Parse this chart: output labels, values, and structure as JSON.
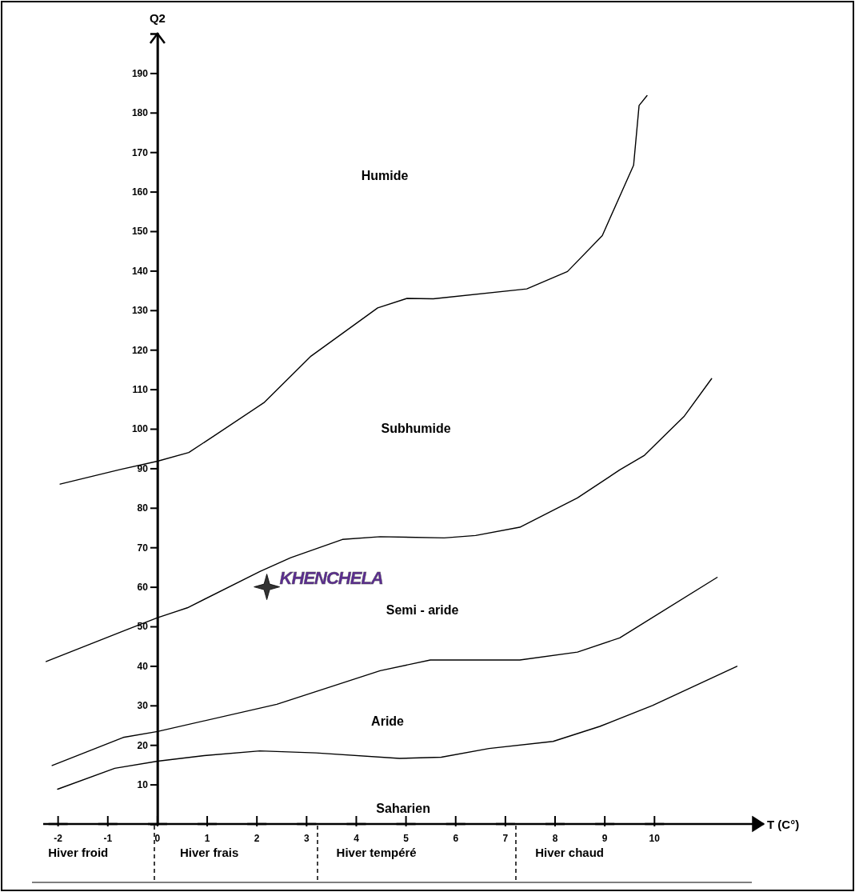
{
  "chart_data": {
    "type": "line",
    "xlabel": "T (C°)",
    "ylabel": "Q2",
    "xlim": [
      -2.3,
      12.2
    ],
    "ylim": [
      0,
      200
    ],
    "xticks": [
      -2,
      -1,
      0,
      1,
      2,
      3,
      4,
      5,
      6,
      7,
      8,
      9,
      10
    ],
    "yticks": [
      10,
      20,
      30,
      40,
      50,
      60,
      70,
      80,
      90,
      100,
      110,
      120,
      130,
      140,
      150,
      160,
      170,
      180,
      190
    ],
    "marker": "none",
    "line_style": "solid",
    "series": [
      {
        "color": "#000000",
        "x": [
          -1.96,
          -0.75,
          0,
          0.63,
          1.15,
          2.14,
          3.09,
          4.43,
          5.02,
          5.55,
          7.43,
          8.25,
          8.95,
          9.58,
          9.69,
          9.85
        ],
        "values": [
          86,
          89.7,
          91.8,
          94,
          98.3,
          106.6,
          118.4,
          130.6,
          133,
          132.9,
          135.4,
          139.8,
          148.9,
          166.7,
          181.8,
          184.3
        ]
      },
      {
        "color": "#000000",
        "x": [
          -2.24,
          -0.63,
          0,
          0.6,
          2.06,
          2.68,
          3.72,
          4.48,
          5.77,
          6.4,
          7.29,
          8.45,
          9.3,
          9.8,
          10.25,
          10.6,
          11.15
        ],
        "values": [
          41.1,
          49.1,
          52.2,
          54.7,
          63.9,
          67.4,
          72,
          72.7,
          72.4,
          73,
          75.1,
          82.5,
          89.6,
          93.3,
          98.9,
          103.2,
          112.7
        ]
      },
      {
        "color": "#000000",
        "x": [
          -2.12,
          -0.69,
          0,
          2.4,
          4.48,
          5.49,
          7.29,
          8.45,
          9.3,
          11.26
        ],
        "values": [
          14.8,
          21.9,
          23.4,
          30.3,
          38.8,
          41.5,
          41.5,
          43.5,
          47.1,
          62.4
        ]
      },
      {
        "color": "#000000",
        "x": [
          -2.01,
          -0.86,
          0,
          0.94,
          2.06,
          3.19,
          4.87,
          5.71,
          6.67,
          7.96,
          8.9,
          9.96,
          11.66
        ],
        "values": [
          8.8,
          14.1,
          15.9,
          17.3,
          18.5,
          18,
          16.6,
          16.9,
          19.1,
          20.9,
          24.7,
          30,
          39.9
        ]
      },
      {
        "type": "scatter",
        "name": "KHENCHELA",
        "color": "#333333",
        "marker": "star",
        "x": [
          2.2
        ],
        "values": [
          60
        ]
      }
    ],
    "annotations": [
      "Humide",
      "Subhumide",
      "Semi - aride",
      "Aride",
      "Saharien",
      "Hiver froid",
      "Hiver frais",
      "Hiver tempéré",
      "Hiver chaud"
    ]
  }
}
